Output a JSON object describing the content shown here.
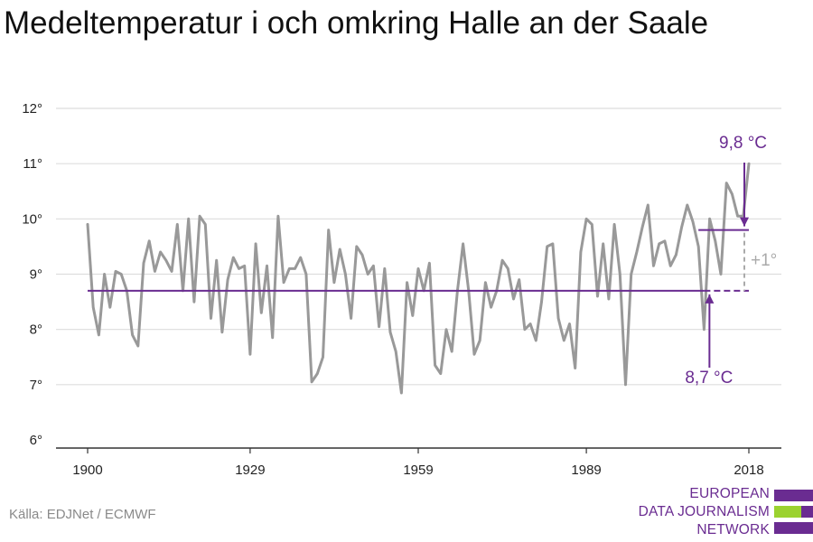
{
  "title": "Medeltemperatur i och omkring Halle an der Saale",
  "source": "Källa: EDJNet / ECMWF",
  "logo": {
    "lines": [
      "EUROPEAN",
      "DATA JOURNALISM",
      "NETWORK"
    ],
    "colors": {
      "purple": "#6a2c91",
      "green": "#9bd22f"
    }
  },
  "colors": {
    "line": "#999999",
    "reference": "#6a2c91",
    "delta": "#aaaaaa",
    "grid": "#dddddd"
  },
  "chart_data": {
    "type": "line",
    "title": "Medeltemperatur i och omkring Halle an der Saale",
    "xlabel": "",
    "ylabel": "",
    "xlim": [
      1900,
      2018
    ],
    "ylim": [
      6,
      12
    ],
    "y_ticks": [
      6,
      7,
      8,
      9,
      10,
      11,
      12
    ],
    "y_tick_labels": [
      "6°",
      "7°",
      "8°",
      "9°",
      "10°",
      "11°",
      "12°"
    ],
    "x_ticks": [
      1900,
      1929,
      1959,
      1989,
      2018
    ],
    "x_tick_labels": [
      "1900",
      "1929",
      "1959",
      "1989",
      "2018"
    ],
    "grid": "horizontal",
    "series": [
      {
        "color": "#999999",
        "x": [
          1900,
          1901,
          1902,
          1903,
          1904,
          1905,
          1906,
          1907,
          1908,
          1909,
          1910,
          1911,
          1912,
          1913,
          1914,
          1915,
          1916,
          1917,
          1918,
          1919,
          1920,
          1921,
          1922,
          1923,
          1924,
          1925,
          1926,
          1927,
          1928,
          1929,
          1930,
          1931,
          1932,
          1933,
          1934,
          1935,
          1936,
          1937,
          1938,
          1939,
          1940,
          1941,
          1942,
          1943,
          1944,
          1945,
          1946,
          1947,
          1948,
          1949,
          1950,
          1951,
          1952,
          1953,
          1954,
          1955,
          1956,
          1957,
          1958,
          1959,
          1960,
          1961,
          1962,
          1963,
          1964,
          1965,
          1966,
          1967,
          1968,
          1969,
          1970,
          1971,
          1972,
          1973,
          1974,
          1975,
          1976,
          1977,
          1978,
          1979,
          1980,
          1981,
          1982,
          1983,
          1984,
          1985,
          1986,
          1987,
          1988,
          1989,
          1990,
          1991,
          1992,
          1993,
          1994,
          1995,
          1996,
          1997,
          1998,
          1999,
          2000,
          2001,
          2002,
          2003,
          2004,
          2005,
          2006,
          2007,
          2008,
          2009,
          2010,
          2011,
          2012,
          2013,
          2014,
          2015,
          2016,
          2017,
          2018
        ],
        "y": [
          9.9,
          8.4,
          7.9,
          9.0,
          8.4,
          9.05,
          9.0,
          8.7,
          7.9,
          7.7,
          9.2,
          9.6,
          9.05,
          9.4,
          9.25,
          9.05,
          9.9,
          8.7,
          10.0,
          8.5,
          10.05,
          9.9,
          8.2,
          9.25,
          7.95,
          8.9,
          9.3,
          9.1,
          9.15,
          7.55,
          9.55,
          8.3,
          9.15,
          7.85,
          10.05,
          8.85,
          9.1,
          9.1,
          9.3,
          9.0,
          7.05,
          7.2,
          7.5,
          9.8,
          8.85,
          9.45,
          9.0,
          8.2,
          9.5,
          9.35,
          9.0,
          9.15,
          8.05,
          9.1,
          7.95,
          7.6,
          6.85,
          8.85,
          8.25,
          9.1,
          8.7,
          9.2,
          7.35,
          7.2,
          8.0,
          7.6,
          8.7,
          9.55,
          8.7,
          7.55,
          7.8,
          8.85,
          8.4,
          8.7,
          9.25,
          9.1,
          8.55,
          8.9,
          8.0,
          8.1,
          7.8,
          8.5,
          9.5,
          9.55,
          8.2,
          7.8,
          8.1,
          7.3,
          9.4,
          10.0,
          9.9,
          8.6,
          9.55,
          8.55,
          9.9,
          9.0,
          7.0,
          9.0,
          9.4,
          9.85,
          10.25,
          9.15,
          9.55,
          9.6,
          9.15,
          9.35,
          9.85,
          10.25,
          9.95,
          9.5,
          8.0,
          10.0,
          9.6,
          9.0,
          10.65,
          10.45,
          10.05,
          10.05,
          11.0
        ]
      }
    ],
    "reference_lines": [
      {
        "label": "8,7 °C",
        "value": 8.7,
        "from": 1900,
        "to": 2018,
        "solid_until": 2010
      },
      {
        "label": "9,8 °C",
        "value": 9.8,
        "from": 2009,
        "to": 2018
      }
    ],
    "annotations": [
      {
        "text": "8,7 °C",
        "x": 2010,
        "y": 7.0
      },
      {
        "text": "9,8 °C",
        "x": 2018,
        "y": 11.2
      },
      {
        "text": "+1°",
        "x": 2018,
        "y": 9.3
      }
    ]
  }
}
